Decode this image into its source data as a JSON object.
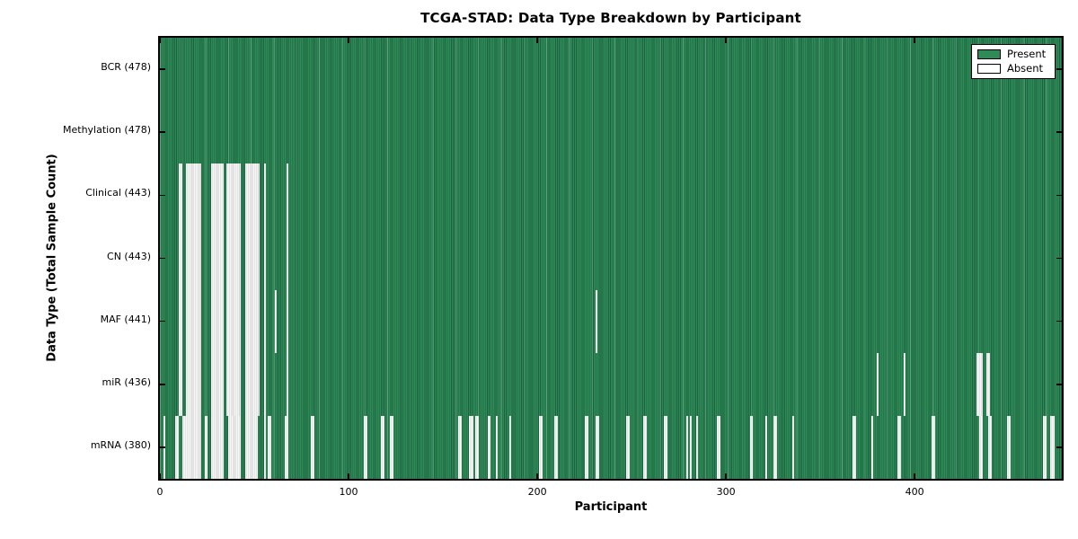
{
  "figure": {
    "title": "TCGA-STAD: Data Type Breakdown by Participant",
    "xlabel": "Participant",
    "ylabel": "Data Type (Total Sample Count)"
  },
  "legend": {
    "items": [
      {
        "label": "Present",
        "color": "#2E8B57"
      },
      {
        "label": "Absent",
        "color": "#FFFFFF"
      }
    ]
  },
  "chart_data": {
    "type": "heatmap",
    "title": "TCGA-STAD: Data Type Breakdown by Participant",
    "xlabel": "Participant",
    "ylabel": "Data Type (Total Sample Count)",
    "x_ticks": [
      0,
      100,
      200,
      300,
      400
    ],
    "xlim": [
      0,
      478
    ],
    "n_participants": 478,
    "grid": false,
    "legend_position": "upper right",
    "cell_states": [
      "Present",
      "Absent"
    ],
    "colors": {
      "present": "#2E8B57",
      "present_edge": "#1E6140",
      "absent": "#F7F7F7",
      "absent_edge": "#CFCFCF",
      "row_separator": "#141414",
      "spine": "#000000"
    },
    "rows": [
      {
        "data_type": "BCR",
        "label": "BCR (478)",
        "present_count": 478,
        "absent_count": 0,
        "absent_ranges": []
      },
      {
        "data_type": "Methylation",
        "label": "Methylation (478)",
        "present_count": 478,
        "absent_count": 0,
        "absent_ranges": []
      },
      {
        "data_type": "Clinical",
        "label": "Clinical (443)",
        "present_count": 443,
        "absent_count": 35,
        "absent_ranges": [
          [
            10,
            11
          ],
          [
            14,
            21
          ],
          [
            27,
            33
          ],
          [
            35,
            42
          ],
          [
            45,
            52
          ],
          [
            55,
            55
          ],
          [
            67,
            67
          ]
        ]
      },
      {
        "data_type": "CN",
        "label": "CN (443)",
        "present_count": 443,
        "absent_count": 35,
        "absent_ranges": [
          [
            10,
            11
          ],
          [
            14,
            21
          ],
          [
            27,
            33
          ],
          [
            35,
            42
          ],
          [
            45,
            52
          ],
          [
            55,
            55
          ],
          [
            67,
            67
          ]
        ]
      },
      {
        "data_type": "MAF",
        "label": "MAF (441)",
        "present_count": 441,
        "absent_count": 37,
        "absent_ranges": [
          [
            10,
            11
          ],
          [
            14,
            21
          ],
          [
            27,
            33
          ],
          [
            35,
            42
          ],
          [
            45,
            52
          ],
          [
            55,
            55
          ],
          [
            61,
            61
          ],
          [
            67,
            67
          ],
          [
            231,
            231
          ]
        ]
      },
      {
        "data_type": "miR",
        "label": "miR (436)",
        "present_count": 436,
        "absent_count": 42,
        "absent_ranges": [
          [
            10,
            11
          ],
          [
            14,
            21
          ],
          [
            27,
            33
          ],
          [
            35,
            42
          ],
          [
            45,
            52
          ],
          [
            55,
            55
          ],
          [
            67,
            67
          ],
          [
            380,
            380
          ],
          [
            394,
            394
          ],
          [
            433,
            435
          ],
          [
            438,
            439
          ]
        ]
      },
      {
        "data_type": "mRNA",
        "label": "mRNA (380)",
        "present_count": 380,
        "absent_count": 98,
        "absent_ranges": [
          [
            2,
            2
          ],
          [
            8,
            9
          ],
          [
            12,
            13
          ],
          [
            14,
            21
          ],
          [
            24,
            24
          ],
          [
            27,
            33
          ],
          [
            36,
            42
          ],
          [
            45,
            51
          ],
          [
            55,
            55
          ],
          [
            57,
            58
          ],
          [
            66,
            67
          ],
          [
            80,
            81
          ],
          [
            108,
            109
          ],
          [
            117,
            118
          ],
          [
            122,
            123
          ],
          [
            158,
            159
          ],
          [
            164,
            165
          ],
          [
            167,
            168
          ],
          [
            174,
            174
          ],
          [
            178,
            178
          ],
          [
            185,
            185
          ],
          [
            201,
            202
          ],
          [
            209,
            210
          ],
          [
            225,
            226
          ],
          [
            231,
            232
          ],
          [
            247,
            248
          ],
          [
            256,
            257
          ],
          [
            267,
            268
          ],
          [
            279,
            279
          ],
          [
            281,
            281
          ],
          [
            284,
            284
          ],
          [
            295,
            296
          ],
          [
            313,
            313
          ],
          [
            321,
            321
          ],
          [
            325,
            326
          ],
          [
            335,
            335
          ],
          [
            367,
            368
          ],
          [
            377,
            377
          ],
          [
            391,
            392
          ],
          [
            409,
            410
          ],
          [
            434,
            435
          ],
          [
            439,
            440
          ],
          [
            449,
            450
          ],
          [
            468,
            469
          ],
          [
            472,
            473
          ]
        ]
      }
    ]
  }
}
